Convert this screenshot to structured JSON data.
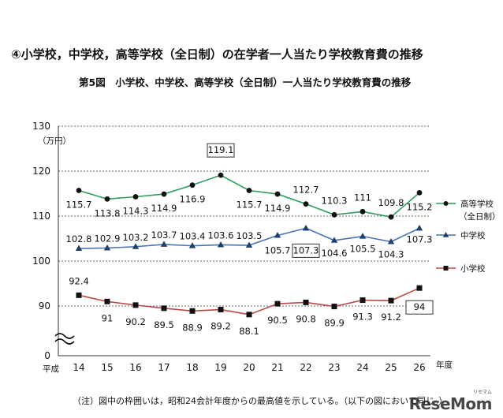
{
  "page": {
    "heading": "④小学校，中学校，高等学校（全日制）の在学者一人当たり学校教育費の推移",
    "note": "（注）図中の枠囲いは，昭和24会計年度からの最高値を示している。（以下の図において同じ。）",
    "watermark": "ReseMom",
    "watermark_kana": "リセマム"
  },
  "chart_data": {
    "type": "line",
    "title": "第5図　小学校、中学校、高等学校（全日制）一人当たり学校教育費の推移",
    "ylabel": "（万円）",
    "xlabel": "年度",
    "x_prefix": "平成",
    "categories": [
      "14",
      "15",
      "16",
      "17",
      "18",
      "19",
      "20",
      "21",
      "22",
      "23",
      "24",
      "25",
      "26"
    ],
    "y_ticks": [
      0,
      90,
      100,
      110,
      120,
      130
    ],
    "ylim": [
      85,
      130
    ],
    "axis_break": true,
    "grid": true,
    "legend_position": "right",
    "series": [
      {
        "name": "高等学校",
        "name_sub": "（全日制）",
        "color": "#2e9e5b",
        "marker": "circle",
        "values": [
          115.7,
          113.8,
          114.3,
          114.9,
          116.9,
          119.1,
          115.7,
          114.9,
          112.7,
          110.3,
          111.0,
          109.8,
          115.2
        ],
        "boxed": [
          5
        ]
      },
      {
        "name": "中学校",
        "color": "#4a74b4",
        "marker": "triangle",
        "values": [
          102.8,
          102.9,
          103.2,
          103.7,
          103.4,
          103.6,
          103.5,
          105.7,
          107.3,
          104.6,
          105.5,
          104.3,
          107.3
        ],
        "boxed": [
          8
        ]
      },
      {
        "name": "小学校",
        "color": "#b94a48",
        "marker": "square",
        "values": [
          92.4,
          91.0,
          90.2,
          89.5,
          88.9,
          89.2,
          88.1,
          90.5,
          90.8,
          89.9,
          91.3,
          91.2,
          94.0
        ],
        "boxed": [
          12
        ]
      }
    ]
  }
}
